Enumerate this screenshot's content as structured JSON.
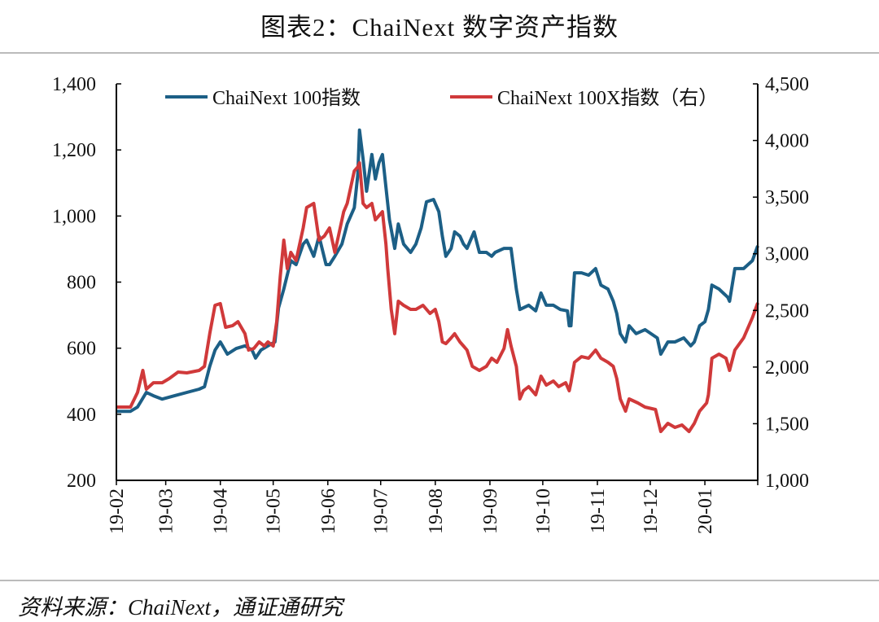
{
  "title": "图表2：ChaiNext 数字资产指数",
  "source": "资料来源：ChaiNext，通证通研究",
  "chart_data": {
    "type": "line",
    "title": "图表2：ChaiNext 数字资产指数",
    "xlim": [
      "2019-02-01",
      "2020-01-31"
    ],
    "x_tick_labels": [
      "19-02",
      "19-03",
      "19-04",
      "19-05",
      "19-06",
      "19-07",
      "19-08",
      "19-09",
      "19-10",
      "19-11",
      "19-12",
      "20-01"
    ],
    "x_tick_dates": [
      "2019-02-01",
      "2019-03-01",
      "2019-04-01",
      "2019-05-01",
      "2019-06-01",
      "2019-07-01",
      "2019-08-01",
      "2019-09-01",
      "2019-10-01",
      "2019-11-01",
      "2019-12-01",
      "2020-01-01"
    ],
    "y_left": {
      "lim": [
        200,
        1400
      ],
      "ticks": [
        200,
        400,
        600,
        800,
        1000,
        1200,
        1400
      ],
      "tick_labels": [
        "200",
        "400",
        "600",
        "800",
        "1,000",
        "1,200",
        "1,400"
      ]
    },
    "y_right": {
      "lim": [
        1000,
        4500
      ],
      "ticks": [
        1000,
        1500,
        2000,
        2500,
        3000,
        3500,
        4000,
        4500
      ],
      "tick_labels": [
        "1,000",
        "1,500",
        "2,000",
        "2,500",
        "3,000",
        "3,500",
        "4,000",
        "4,500"
      ]
    },
    "grid": false,
    "legend_position": "top",
    "series": [
      {
        "name": "ChaiNext 100指数",
        "axis": "left",
        "color": "#1c5f86",
        "points": [
          [
            "2019-02-01",
            409
          ],
          [
            "2019-02-09",
            409
          ],
          [
            "2019-02-13",
            422
          ],
          [
            "2019-02-18",
            466
          ],
          [
            "2019-02-22",
            456
          ],
          [
            "2019-02-27",
            446
          ],
          [
            "2019-03-06",
            456
          ],
          [
            "2019-03-13",
            466
          ],
          [
            "2019-03-20",
            476
          ],
          [
            "2019-03-23",
            483
          ],
          [
            "2019-03-26",
            545
          ],
          [
            "2019-03-29",
            594
          ],
          [
            "2019-04-01",
            619
          ],
          [
            "2019-04-05",
            582
          ],
          [
            "2019-04-10",
            599
          ],
          [
            "2019-04-15",
            607
          ],
          [
            "2019-04-19",
            594
          ],
          [
            "2019-04-21",
            570
          ],
          [
            "2019-04-24",
            594
          ],
          [
            "2019-04-28",
            607
          ],
          [
            "2019-05-02",
            619
          ],
          [
            "2019-05-04",
            722
          ],
          [
            "2019-05-07",
            779
          ],
          [
            "2019-05-11",
            865
          ],
          [
            "2019-05-14",
            853
          ],
          [
            "2019-05-18",
            915
          ],
          [
            "2019-05-20",
            927
          ],
          [
            "2019-05-24",
            878
          ],
          [
            "2019-05-27",
            939
          ],
          [
            "2019-05-31",
            853
          ],
          [
            "2019-06-02",
            853
          ],
          [
            "2019-06-05",
            878
          ],
          [
            "2019-06-09",
            915
          ],
          [
            "2019-06-12",
            976
          ],
          [
            "2019-06-16",
            1025
          ],
          [
            "2019-06-18",
            1124
          ],
          [
            "2019-06-19",
            1260
          ],
          [
            "2019-06-21",
            1173
          ],
          [
            "2019-06-23",
            1075
          ],
          [
            "2019-06-26",
            1186
          ],
          [
            "2019-06-28",
            1112
          ],
          [
            "2019-06-30",
            1161
          ],
          [
            "2019-07-02",
            1186
          ],
          [
            "2019-07-04",
            1087
          ],
          [
            "2019-07-06",
            989
          ],
          [
            "2019-07-09",
            902
          ],
          [
            "2019-07-11",
            976
          ],
          [
            "2019-07-14",
            915
          ],
          [
            "2019-07-18",
            890
          ],
          [
            "2019-07-21",
            915
          ],
          [
            "2019-07-24",
            964
          ],
          [
            "2019-07-27",
            1043
          ],
          [
            "2019-07-31",
            1050
          ],
          [
            "2019-08-03",
            1013
          ],
          [
            "2019-08-05",
            939
          ],
          [
            "2019-08-07",
            878
          ],
          [
            "2019-08-10",
            902
          ],
          [
            "2019-08-12",
            952
          ],
          [
            "2019-08-15",
            939
          ],
          [
            "2019-08-17",
            915
          ],
          [
            "2019-08-19",
            902
          ],
          [
            "2019-08-23",
            952
          ],
          [
            "2019-08-26",
            890
          ],
          [
            "2019-08-30",
            890
          ],
          [
            "2019-09-02",
            878
          ],
          [
            "2019-09-04",
            890
          ],
          [
            "2019-09-09",
            902
          ],
          [
            "2019-09-13",
            902
          ],
          [
            "2019-09-16",
            779
          ],
          [
            "2019-09-18",
            717
          ],
          [
            "2019-09-23",
            730
          ],
          [
            "2019-09-27",
            713
          ],
          [
            "2019-09-30",
            767
          ],
          [
            "2019-10-03",
            730
          ],
          [
            "2019-10-07",
            730
          ],
          [
            "2019-10-11",
            717
          ],
          [
            "2019-10-15",
            713
          ],
          [
            "2019-10-16",
            668
          ],
          [
            "2019-10-17",
            668
          ],
          [
            "2019-10-19",
            828
          ],
          [
            "2019-10-23",
            828
          ],
          [
            "2019-10-27",
            821
          ],
          [
            "2019-10-31",
            841
          ],
          [
            "2019-11-03",
            791
          ],
          [
            "2019-11-07",
            779
          ],
          [
            "2019-11-10",
            742
          ],
          [
            "2019-11-12",
            705
          ],
          [
            "2019-11-14",
            644
          ],
          [
            "2019-11-17",
            619
          ],
          [
            "2019-11-19",
            668
          ],
          [
            "2019-11-23",
            644
          ],
          [
            "2019-11-28",
            656
          ],
          [
            "2019-12-05",
            631
          ],
          [
            "2019-12-07",
            582
          ],
          [
            "2019-12-11",
            619
          ],
          [
            "2019-12-15",
            619
          ],
          [
            "2019-12-20",
            631
          ],
          [
            "2019-12-24",
            607
          ],
          [
            "2019-12-26",
            619
          ],
          [
            "2019-12-29",
            668
          ],
          [
            "2020-01-01",
            680
          ],
          [
            "2020-01-03",
            717
          ],
          [
            "2020-01-05",
            791
          ],
          [
            "2020-01-09",
            779
          ],
          [
            "2020-01-14",
            754
          ],
          [
            "2020-01-15",
            742
          ],
          [
            "2020-01-18",
            841
          ],
          [
            "2020-01-23",
            841
          ],
          [
            "2020-01-28",
            865
          ],
          [
            "2020-01-31",
            910
          ]
        ]
      },
      {
        "name": "ChaiNext 100X指数（右）",
        "axis": "right",
        "color": "#d0393a",
        "points": [
          [
            "2019-02-01",
            1647
          ],
          [
            "2019-02-09",
            1647
          ],
          [
            "2019-02-13",
            1776
          ],
          [
            "2019-02-16",
            1970
          ],
          [
            "2019-02-18",
            1805
          ],
          [
            "2019-02-22",
            1862
          ],
          [
            "2019-02-27",
            1862
          ],
          [
            "2019-03-03",
            1898
          ],
          [
            "2019-03-08",
            1956
          ],
          [
            "2019-03-13",
            1949
          ],
          [
            "2019-03-20",
            1970
          ],
          [
            "2019-03-23",
            2006
          ],
          [
            "2019-03-26",
            2294
          ],
          [
            "2019-03-29",
            2545
          ],
          [
            "2019-04-01",
            2560
          ],
          [
            "2019-04-04",
            2351
          ],
          [
            "2019-04-08",
            2366
          ],
          [
            "2019-04-11",
            2401
          ],
          [
            "2019-04-15",
            2294
          ],
          [
            "2019-04-17",
            2150
          ],
          [
            "2019-04-20",
            2164
          ],
          [
            "2019-04-23",
            2222
          ],
          [
            "2019-04-26",
            2186
          ],
          [
            "2019-04-28",
            2222
          ],
          [
            "2019-05-01",
            2186
          ],
          [
            "2019-05-03",
            2401
          ],
          [
            "2019-05-05",
            2797
          ],
          [
            "2019-05-07",
            3120
          ],
          [
            "2019-05-09",
            2869
          ],
          [
            "2019-05-11",
            3012
          ],
          [
            "2019-05-14",
            2940
          ],
          [
            "2019-05-18",
            3228
          ],
          [
            "2019-05-20",
            3408
          ],
          [
            "2019-05-24",
            3444
          ],
          [
            "2019-05-27",
            3120
          ],
          [
            "2019-05-30",
            3156
          ],
          [
            "2019-06-02",
            3228
          ],
          [
            "2019-06-05",
            3012
          ],
          [
            "2019-06-07",
            3156
          ],
          [
            "2019-06-10",
            3372
          ],
          [
            "2019-06-12",
            3444
          ],
          [
            "2019-06-16",
            3731
          ],
          [
            "2019-06-18",
            3767
          ],
          [
            "2019-06-19",
            3803
          ],
          [
            "2019-06-21",
            3444
          ],
          [
            "2019-06-23",
            3408
          ],
          [
            "2019-06-26",
            3444
          ],
          [
            "2019-06-28",
            3300
          ],
          [
            "2019-07-02",
            3372
          ],
          [
            "2019-07-04",
            3084
          ],
          [
            "2019-07-05",
            2869
          ],
          [
            "2019-07-07",
            2509
          ],
          [
            "2019-07-09",
            2294
          ],
          [
            "2019-07-11",
            2581
          ],
          [
            "2019-07-14",
            2545
          ],
          [
            "2019-07-18",
            2509
          ],
          [
            "2019-07-21",
            2509
          ],
          [
            "2019-07-25",
            2545
          ],
          [
            "2019-07-29",
            2473
          ],
          [
            "2019-08-01",
            2509
          ],
          [
            "2019-08-03",
            2401
          ],
          [
            "2019-08-05",
            2222
          ],
          [
            "2019-08-07",
            2207
          ],
          [
            "2019-08-10",
            2258
          ],
          [
            "2019-08-12",
            2294
          ],
          [
            "2019-08-15",
            2222
          ],
          [
            "2019-08-17",
            2186
          ],
          [
            "2019-08-19",
            2150
          ],
          [
            "2019-08-22",
            2006
          ],
          [
            "2019-08-26",
            1970
          ],
          [
            "2019-08-30",
            2006
          ],
          [
            "2019-09-02",
            2078
          ],
          [
            "2019-09-05",
            2042
          ],
          [
            "2019-09-09",
            2164
          ],
          [
            "2019-09-11",
            2330
          ],
          [
            "2019-09-13",
            2186
          ],
          [
            "2019-09-16",
            2006
          ],
          [
            "2019-09-18",
            1719
          ],
          [
            "2019-09-20",
            1791
          ],
          [
            "2019-09-23",
            1827
          ],
          [
            "2019-09-27",
            1755
          ],
          [
            "2019-09-30",
            1920
          ],
          [
            "2019-10-03",
            1841
          ],
          [
            "2019-10-07",
            1877
          ],
          [
            "2019-10-10",
            1827
          ],
          [
            "2019-10-14",
            1862
          ],
          [
            "2019-10-16",
            1791
          ],
          [
            "2019-10-17",
            1862
          ],
          [
            "2019-10-19",
            2042
          ],
          [
            "2019-10-23",
            2092
          ],
          [
            "2019-10-27",
            2078
          ],
          [
            "2019-10-31",
            2150
          ],
          [
            "2019-11-03",
            2078
          ],
          [
            "2019-11-07",
            2042
          ],
          [
            "2019-11-10",
            2006
          ],
          [
            "2019-11-12",
            1898
          ],
          [
            "2019-11-14",
            1719
          ],
          [
            "2019-11-17",
            1611
          ],
          [
            "2019-11-19",
            1719
          ],
          [
            "2019-11-24",
            1683
          ],
          [
            "2019-11-28",
            1647
          ],
          [
            "2019-12-04",
            1625
          ],
          [
            "2019-12-07",
            1431
          ],
          [
            "2019-12-11",
            1503
          ],
          [
            "2019-12-15",
            1467
          ],
          [
            "2019-12-19",
            1489
          ],
          [
            "2019-12-23",
            1431
          ],
          [
            "2019-12-26",
            1503
          ],
          [
            "2019-12-29",
            1611
          ],
          [
            "2020-01-02",
            1683
          ],
          [
            "2020-01-03",
            1755
          ],
          [
            "2020-01-05",
            2078
          ],
          [
            "2020-01-09",
            2114
          ],
          [
            "2020-01-13",
            2078
          ],
          [
            "2020-01-15",
            1970
          ],
          [
            "2020-01-18",
            2150
          ],
          [
            "2020-01-23",
            2258
          ],
          [
            "2020-01-28",
            2437
          ],
          [
            "2020-01-31",
            2567
          ]
        ]
      }
    ]
  }
}
